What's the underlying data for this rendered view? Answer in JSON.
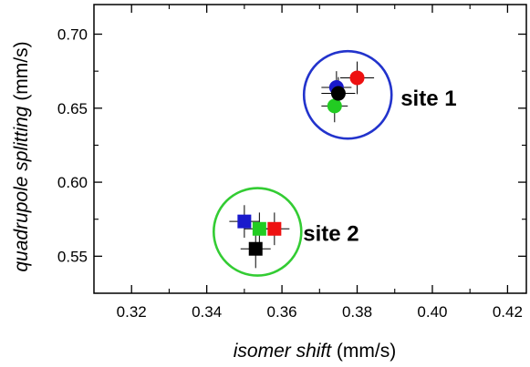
{
  "chart_data": {
    "type": "scatter",
    "xlabel": {
      "italic": "isomer shift",
      "unit": " (mm/s)"
    },
    "ylabel": {
      "italic": "quadrupole splitting",
      "unit": " (mm/s)"
    },
    "xlim": [
      0.31,
      0.425
    ],
    "ylim": [
      0.525,
      0.72
    ],
    "x_ticks": [
      "0.32",
      "0.34",
      "0.36",
      "0.38",
      "0.40",
      "0.42"
    ],
    "y_ticks": [
      "0.55",
      "0.60",
      "0.65",
      "0.70"
    ],
    "grid": false,
    "groups": [
      {
        "label": "site 1",
        "marker": "circle",
        "ring_color": "#2233cc",
        "ring_center": [
          0.3775,
          0.659
        ],
        "points": [
          {
            "x": 0.38,
            "y": 0.6705,
            "xerr": 0.0045,
            "yerr": 0.011,
            "color": "#ee1111"
          },
          {
            "x": 0.3745,
            "y": 0.664,
            "xerr": 0.004,
            "yerr": 0.011,
            "color": "#1a1acc"
          },
          {
            "x": 0.374,
            "y": 0.6515,
            "xerr": 0.0035,
            "yerr": 0.011,
            "color": "#22cc22"
          },
          {
            "x": 0.375,
            "y": 0.66,
            "xerr": 0.0045,
            "yerr": 0.011,
            "color": "#000000"
          }
        ]
      },
      {
        "label": "site 2",
        "marker": "square",
        "ring_color": "#33cc33",
        "ring_center": [
          0.3535,
          0.5665
        ],
        "points": [
          {
            "x": 0.35,
            "y": 0.5735,
            "xerr": 0.004,
            "yerr": 0.011,
            "color": "#1a1acc"
          },
          {
            "x": 0.358,
            "y": 0.5685,
            "xerr": 0.004,
            "yerr": 0.011,
            "color": "#ee1111"
          },
          {
            "x": 0.354,
            "y": 0.5685,
            "xerr": 0.004,
            "yerr": 0.011,
            "color": "#22cc22"
          },
          {
            "x": 0.353,
            "y": 0.555,
            "xerr": 0.004,
            "yerr": 0.013,
            "color": "#000000"
          }
        ]
      }
    ]
  }
}
